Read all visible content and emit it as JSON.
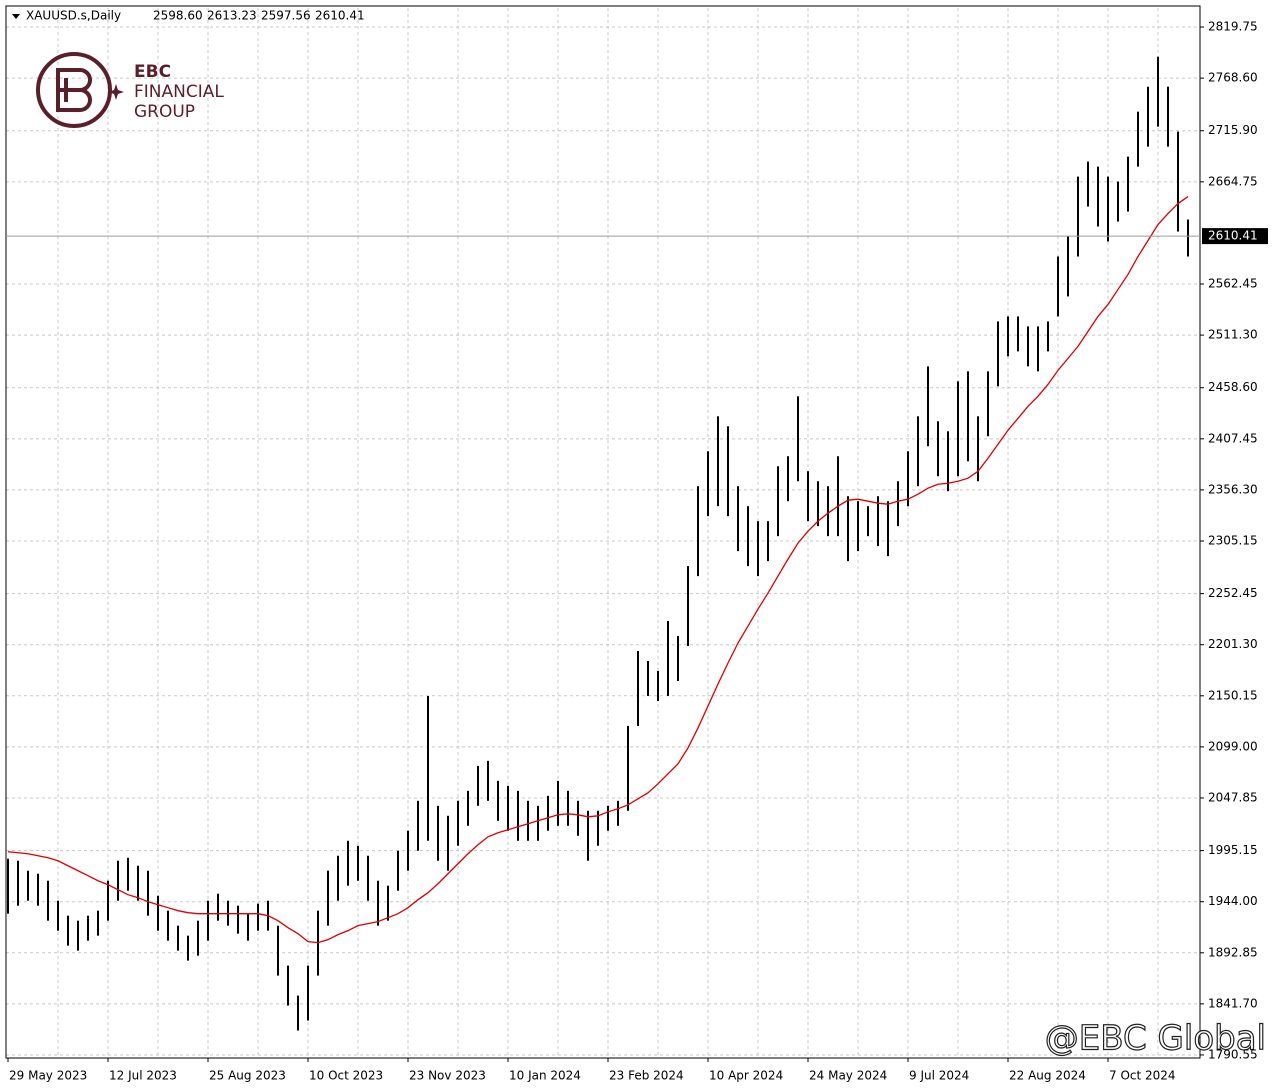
{
  "chart_data": {
    "type": "ohlc",
    "title": "XAUUSD.s,Daily",
    "ohlc_labels": [
      "2598.60",
      "2613.23",
      "2597.56",
      "2610.41"
    ],
    "categories": [
      "29 May 2023",
      null,
      null,
      null,
      null,
      null,
      null,
      null,
      null,
      null,
      "12 Jul 2023",
      null,
      null,
      null,
      null,
      null,
      null,
      null,
      null,
      null,
      "25 Aug 2023",
      null,
      null,
      null,
      null,
      null,
      null,
      null,
      null,
      null,
      "10 Oct 2023",
      null,
      null,
      null,
      null,
      null,
      null,
      null,
      null,
      null,
      "23 Nov 2023",
      null,
      null,
      null,
      null,
      null,
      null,
      null,
      null,
      null,
      "10 Jan 2024",
      null,
      null,
      null,
      null,
      null,
      null,
      null,
      null,
      null,
      "23 Feb 2024",
      null,
      null,
      null,
      null,
      null,
      null,
      null,
      null,
      null,
      "10 Apr 2024",
      null,
      null,
      null,
      null,
      null,
      null,
      null,
      null,
      null,
      "24 May 2024",
      null,
      null,
      null,
      null,
      null,
      null,
      null,
      null,
      null,
      "9 Jul 2024",
      null,
      null,
      null,
      null,
      null,
      null,
      null,
      null,
      null,
      "22 Aug 2024",
      null,
      null,
      null,
      null,
      null,
      null,
      null,
      null,
      null,
      "7 Oct 2024",
      null,
      null,
      null,
      null,
      null,
      null,
      null,
      null
    ],
    "high": [
      1987,
      1985,
      1975,
      1972,
      1965,
      1945,
      1930,
      1925,
      1930,
      1935,
      1965,
      1985,
      1988,
      1980,
      1975,
      1950,
      1935,
      1920,
      1910,
      1925,
      1945,
      1952,
      1945,
      1940,
      1932,
      1942,
      1945,
      1920,
      1880,
      1850,
      1880,
      1935,
      1975,
      1990,
      2005,
      2000,
      1990,
      1965,
      1960,
      1995,
      2015,
      2045,
      2150,
      2040,
      2030,
      2045,
      2055,
      2080,
      2085,
      2065,
      2060,
      2055,
      2045,
      2040,
      2050,
      2065,
      2055,
      2045,
      2035,
      2035,
      2040,
      2045,
      2120,
      2195,
      2185,
      2175,
      2225,
      2210,
      2280,
      2360,
      2395,
      2430,
      2420,
      2360,
      2340,
      2325,
      2325,
      2380,
      2390,
      2450,
      2375,
      2365,
      2360,
      2390,
      2350,
      2345,
      2340,
      2350,
      2345,
      2365,
      2395,
      2430,
      2480,
      2425,
      2415,
      2465,
      2475,
      2430,
      2475,
      2525,
      2530,
      2530,
      2520,
      2520,
      2525,
      2590,
      2610,
      2670,
      2685,
      2680,
      2670,
      2665,
      2690,
      2735,
      2760,
      2790,
      2760,
      2715,
      2627
    ],
    "low": [
      1932,
      1940,
      1945,
      1940,
      1925,
      1915,
      1900,
      1895,
      1905,
      1910,
      1925,
      1945,
      1955,
      1945,
      1930,
      1915,
      1905,
      1895,
      1885,
      1890,
      1905,
      1925,
      1920,
      1912,
      1905,
      1915,
      1915,
      1870,
      1840,
      1815,
      1825,
      1870,
      1920,
      1945,
      1960,
      1965,
      1945,
      1920,
      1925,
      1955,
      1975,
      1995,
      2005,
      1985,
      1975,
      2000,
      2020,
      2040,
      2045,
      2025,
      2015,
      2005,
      2005,
      2005,
      2015,
      2020,
      2020,
      2010,
      1985,
      2000,
      2015,
      2020,
      2035,
      2120,
      2150,
      2145,
      2150,
      2165,
      2200,
      2270,
      2330,
      2340,
      2330,
      2295,
      2280,
      2270,
      2285,
      2310,
      2345,
      2365,
      2325,
      2320,
      2310,
      2310,
      2285,
      2295,
      2310,
      2300,
      2290,
      2320,
      2340,
      2360,
      2400,
      2370,
      2355,
      2370,
      2385,
      2365,
      2410,
      2460,
      2490,
      2495,
      2480,
      2475,
      2495,
      2530,
      2550,
      2590,
      2640,
      2620,
      2605,
      2625,
      2635,
      2680,
      2700,
      2720,
      2700,
      2615,
      2590
    ],
    "color": "#000000",
    "ma": {
      "color": "#e00000",
      "values": [
        1994,
        1993,
        1992,
        1990,
        1988,
        1985,
        1980,
        1975,
        1970,
        1965,
        1961,
        1956,
        1951,
        1948,
        1944,
        1941,
        1938,
        1935,
        1933,
        1932,
        1932,
        1932,
        1932,
        1932,
        1932,
        1932,
        1930,
        1925,
        1918,
        1912,
        1904,
        1903,
        1906,
        1911,
        1915,
        1920,
        1922,
        1924,
        1928,
        1932,
        1938,
        1946,
        1953,
        1962,
        1972,
        1982,
        1992,
        2001,
        2009,
        2013,
        2016,
        2019,
        2022,
        2025,
        2028,
        2031,
        2032,
        2031,
        2029,
        2030,
        2034,
        2037,
        2041,
        2047,
        2053,
        2062,
        2072,
        2082,
        2098,
        2118,
        2140,
        2162,
        2183,
        2203,
        2220,
        2237,
        2253,
        2270,
        2287,
        2303,
        2315,
        2325,
        2333,
        2340,
        2346,
        2347,
        2345,
        2343,
        2342,
        2345,
        2347,
        2352,
        2358,
        2362,
        2363,
        2365,
        2368,
        2375,
        2388,
        2402,
        2416,
        2428,
        2440,
        2450,
        2462,
        2476,
        2488,
        2500,
        2515,
        2530,
        2542,
        2557,
        2572,
        2590,
        2606,
        2622,
        2633,
        2643,
        2650
      ]
    },
    "current_price": {
      "value": 2610.41,
      "label": "2610.41"
    },
    "ylim": [
      1787.5,
      2838.8
    ],
    "yticks": [
      1790.55,
      {
        "value": 1841.7,
        "label": "1841.70"
      },
      1892.85,
      {
        "value": 1944,
        "label": "1944.00"
      },
      1995.15,
      2047.85,
      {
        "value": 2099,
        "label": "2099.00"
      },
      2150.15,
      {
        "value": 2201.3,
        "label": "2201.30"
      },
      2252.45,
      2305.15,
      {
        "value": 2356.3,
        "label": "2356.30"
      },
      2407.45,
      {
        "value": 2458.6,
        "label": "2458.60"
      },
      {
        "value": 2511.3,
        "label": "2511.30"
      },
      2562.45,
      2664.75,
      {
        "value": 2715.9,
        "label": "2715.90"
      },
      {
        "value": 2768.6,
        "label": "2768.60"
      },
      2819.75
    ],
    "grid": true
  },
  "logo": {
    "line1": "EBC",
    "line2": "FINANCIAL",
    "line3": "GROUP"
  },
  "watermark": "@EBC Global"
}
